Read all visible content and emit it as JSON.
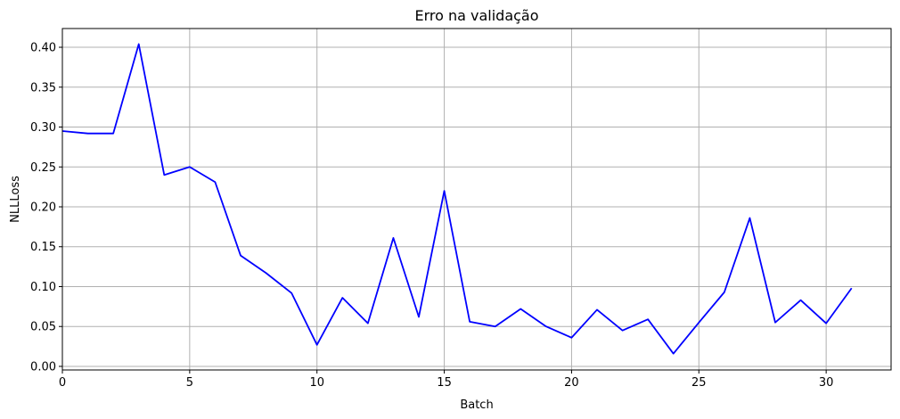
{
  "chart_data": {
    "type": "line",
    "title": "Erro na validação",
    "xlabel": "Batch",
    "ylabel": "NLLLoss",
    "xlim": [
      0,
      32.55
    ],
    "ylim": [
      -0.0045,
      0.4235
    ],
    "xticks": [
      0,
      5,
      10,
      15,
      20,
      25,
      30
    ],
    "yticks": [
      0.0,
      0.05,
      0.1,
      0.15,
      0.2,
      0.25,
      0.3,
      0.35,
      0.4
    ],
    "ytick_labels": [
      "0.00",
      "0.05",
      "0.10",
      "0.15",
      "0.20",
      "0.25",
      "0.30",
      "0.35",
      "0.40"
    ],
    "grid": true,
    "series": [
      {
        "color": "#0000ff",
        "x": [
          0,
          1,
          2,
          3,
          4,
          5,
          6,
          7,
          8,
          9,
          10,
          11,
          12,
          13,
          14,
          15,
          16,
          17,
          18,
          19,
          20,
          21,
          22,
          23,
          24,
          25,
          26,
          27,
          28,
          29,
          30,
          31
        ],
        "values": [
          0.295,
          0.292,
          0.292,
          0.404,
          0.24,
          0.25,
          0.231,
          0.139,
          0.117,
          0.092,
          0.027,
          0.086,
          0.054,
          0.161,
          0.062,
          0.22,
          0.056,
          0.05,
          0.072,
          0.05,
          0.036,
          0.071,
          0.045,
          0.059,
          0.016,
          0.055,
          0.093,
          0.186,
          0.055,
          0.083,
          0.054,
          0.098
        ]
      }
    ]
  }
}
